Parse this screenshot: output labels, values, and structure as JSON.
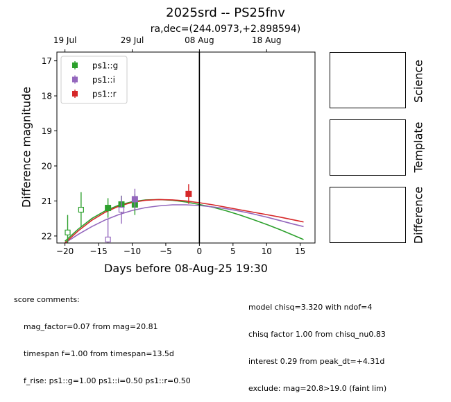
{
  "title": "2025srd -- PS25fnv",
  "subtitle": "ra,dec=(244.0973,+2.898594)",
  "chart_data": {
    "type": "scatter",
    "xlabel": "Days before 08-Aug-25 19:30",
    "ylabel": "Difference magnitude",
    "xlim": [
      -21.2,
      17.2
    ],
    "ylim": [
      22.2,
      16.75
    ],
    "x_ticks": [
      -20,
      -15,
      -10,
      -5,
      0,
      5,
      10,
      15
    ],
    "x_tick_labels": [
      "−20",
      "−15",
      "−10",
      "−5",
      "0",
      "5",
      "10",
      "15"
    ],
    "y_ticks": [
      17,
      18,
      19,
      20,
      21,
      22
    ],
    "y_tick_labels": [
      "17",
      "18",
      "19",
      "20",
      "21",
      "22"
    ],
    "top_axis": {
      "ticks": [
        -20,
        -10,
        0,
        10
      ],
      "labels": [
        "19 Jul",
        "29 Jul",
        "08 Aug",
        "18 Aug"
      ]
    },
    "vline_x": 0,
    "legend_position": "upper-left",
    "series": [
      {
        "name": "ps1::g",
        "color": "#2ca02c",
        "detections": [
          {
            "x": -13.6,
            "y": 21.2,
            "err": 0.28
          },
          {
            "x": -11.6,
            "y": 21.1,
            "err": 0.25
          },
          {
            "x": -9.6,
            "y": 21.1,
            "err": 0.3
          }
        ],
        "limits": [
          {
            "x": -19.6,
            "y": 21.9,
            "err": 0.5
          },
          {
            "x": -17.6,
            "y": 21.25,
            "err": 0.5
          }
        ],
        "model": [
          [
            -20,
            22.15
          ],
          [
            -18,
            21.8
          ],
          [
            -16,
            21.5
          ],
          [
            -14,
            21.28
          ],
          [
            -12,
            21.12
          ],
          [
            -10,
            21.02
          ],
          [
            -8,
            20.97
          ],
          [
            -6,
            20.96
          ],
          [
            -4,
            20.98
          ],
          [
            -2,
            21.03
          ],
          [
            0,
            21.1
          ],
          [
            2,
            21.18
          ],
          [
            4,
            21.28
          ],
          [
            6,
            21.4
          ],
          [
            8,
            21.53
          ],
          [
            10,
            21.67
          ],
          [
            12,
            21.82
          ],
          [
            14,
            21.98
          ],
          [
            15.5,
            22.1
          ]
        ]
      },
      {
        "name": "ps1::i",
        "color": "#9467bd",
        "detections": [
          {
            "x": -9.6,
            "y": 20.95,
            "err": 0.3
          }
        ],
        "limits": [
          {
            "x": -13.6,
            "y": 22.1,
            "err": 0.6
          },
          {
            "x": -11.6,
            "y": 21.25,
            "err": 0.4
          }
        ],
        "model": [
          [
            -20,
            22.2
          ],
          [
            -18,
            21.95
          ],
          [
            -16,
            21.73
          ],
          [
            -14,
            21.54
          ],
          [
            -12,
            21.39
          ],
          [
            -10,
            21.27
          ],
          [
            -8,
            21.19
          ],
          [
            -6,
            21.14
          ],
          [
            -4,
            21.11
          ],
          [
            -2,
            21.11
          ],
          [
            0,
            21.13
          ],
          [
            2,
            21.17
          ],
          [
            4,
            21.22
          ],
          [
            6,
            21.29
          ],
          [
            8,
            21.37
          ],
          [
            10,
            21.46
          ],
          [
            12,
            21.56
          ],
          [
            14,
            21.66
          ],
          [
            15.5,
            21.73
          ]
        ]
      },
      {
        "name": "ps1::r",
        "color": "#d62728",
        "detections": [
          {
            "x": -1.6,
            "y": 20.8,
            "err": 0.28
          }
        ],
        "limits": [],
        "model": [
          [
            -20,
            22.2
          ],
          [
            -18,
            21.85
          ],
          [
            -16,
            21.55
          ],
          [
            -14,
            21.32
          ],
          [
            -12,
            21.15
          ],
          [
            -10,
            21.04
          ],
          [
            -8,
            20.98
          ],
          [
            -6,
            20.96
          ],
          [
            -4,
            20.97
          ],
          [
            -2,
            21.0
          ],
          [
            0,
            21.05
          ],
          [
            2,
            21.11
          ],
          [
            4,
            21.18
          ],
          [
            6,
            21.25
          ],
          [
            8,
            21.32
          ],
          [
            10,
            21.39
          ],
          [
            12,
            21.46
          ],
          [
            14,
            21.54
          ],
          [
            15.5,
            21.6
          ]
        ]
      }
    ]
  },
  "panels": {
    "science": "Science",
    "template": "Template",
    "difference": "Difference"
  },
  "score_comments": {
    "header": "score comments:",
    "lines": [
      "mag_factor=0.07 from mag=20.81",
      "timespan f=1.00 from timespan=13.5d",
      "f_rise: ps1::g=1.00 ps1::i=0.50 ps1::r=0.50"
    ]
  },
  "model_comments": {
    "lines": [
      "model chisq=3.320 with ndof=4",
      "chisq factor 1.00 from chisq_nu0.83",
      "interest 0.29 from peak_dt=+4.31d",
      "exclude: mag=20.8>19.0 (faint lim)"
    ]
  }
}
